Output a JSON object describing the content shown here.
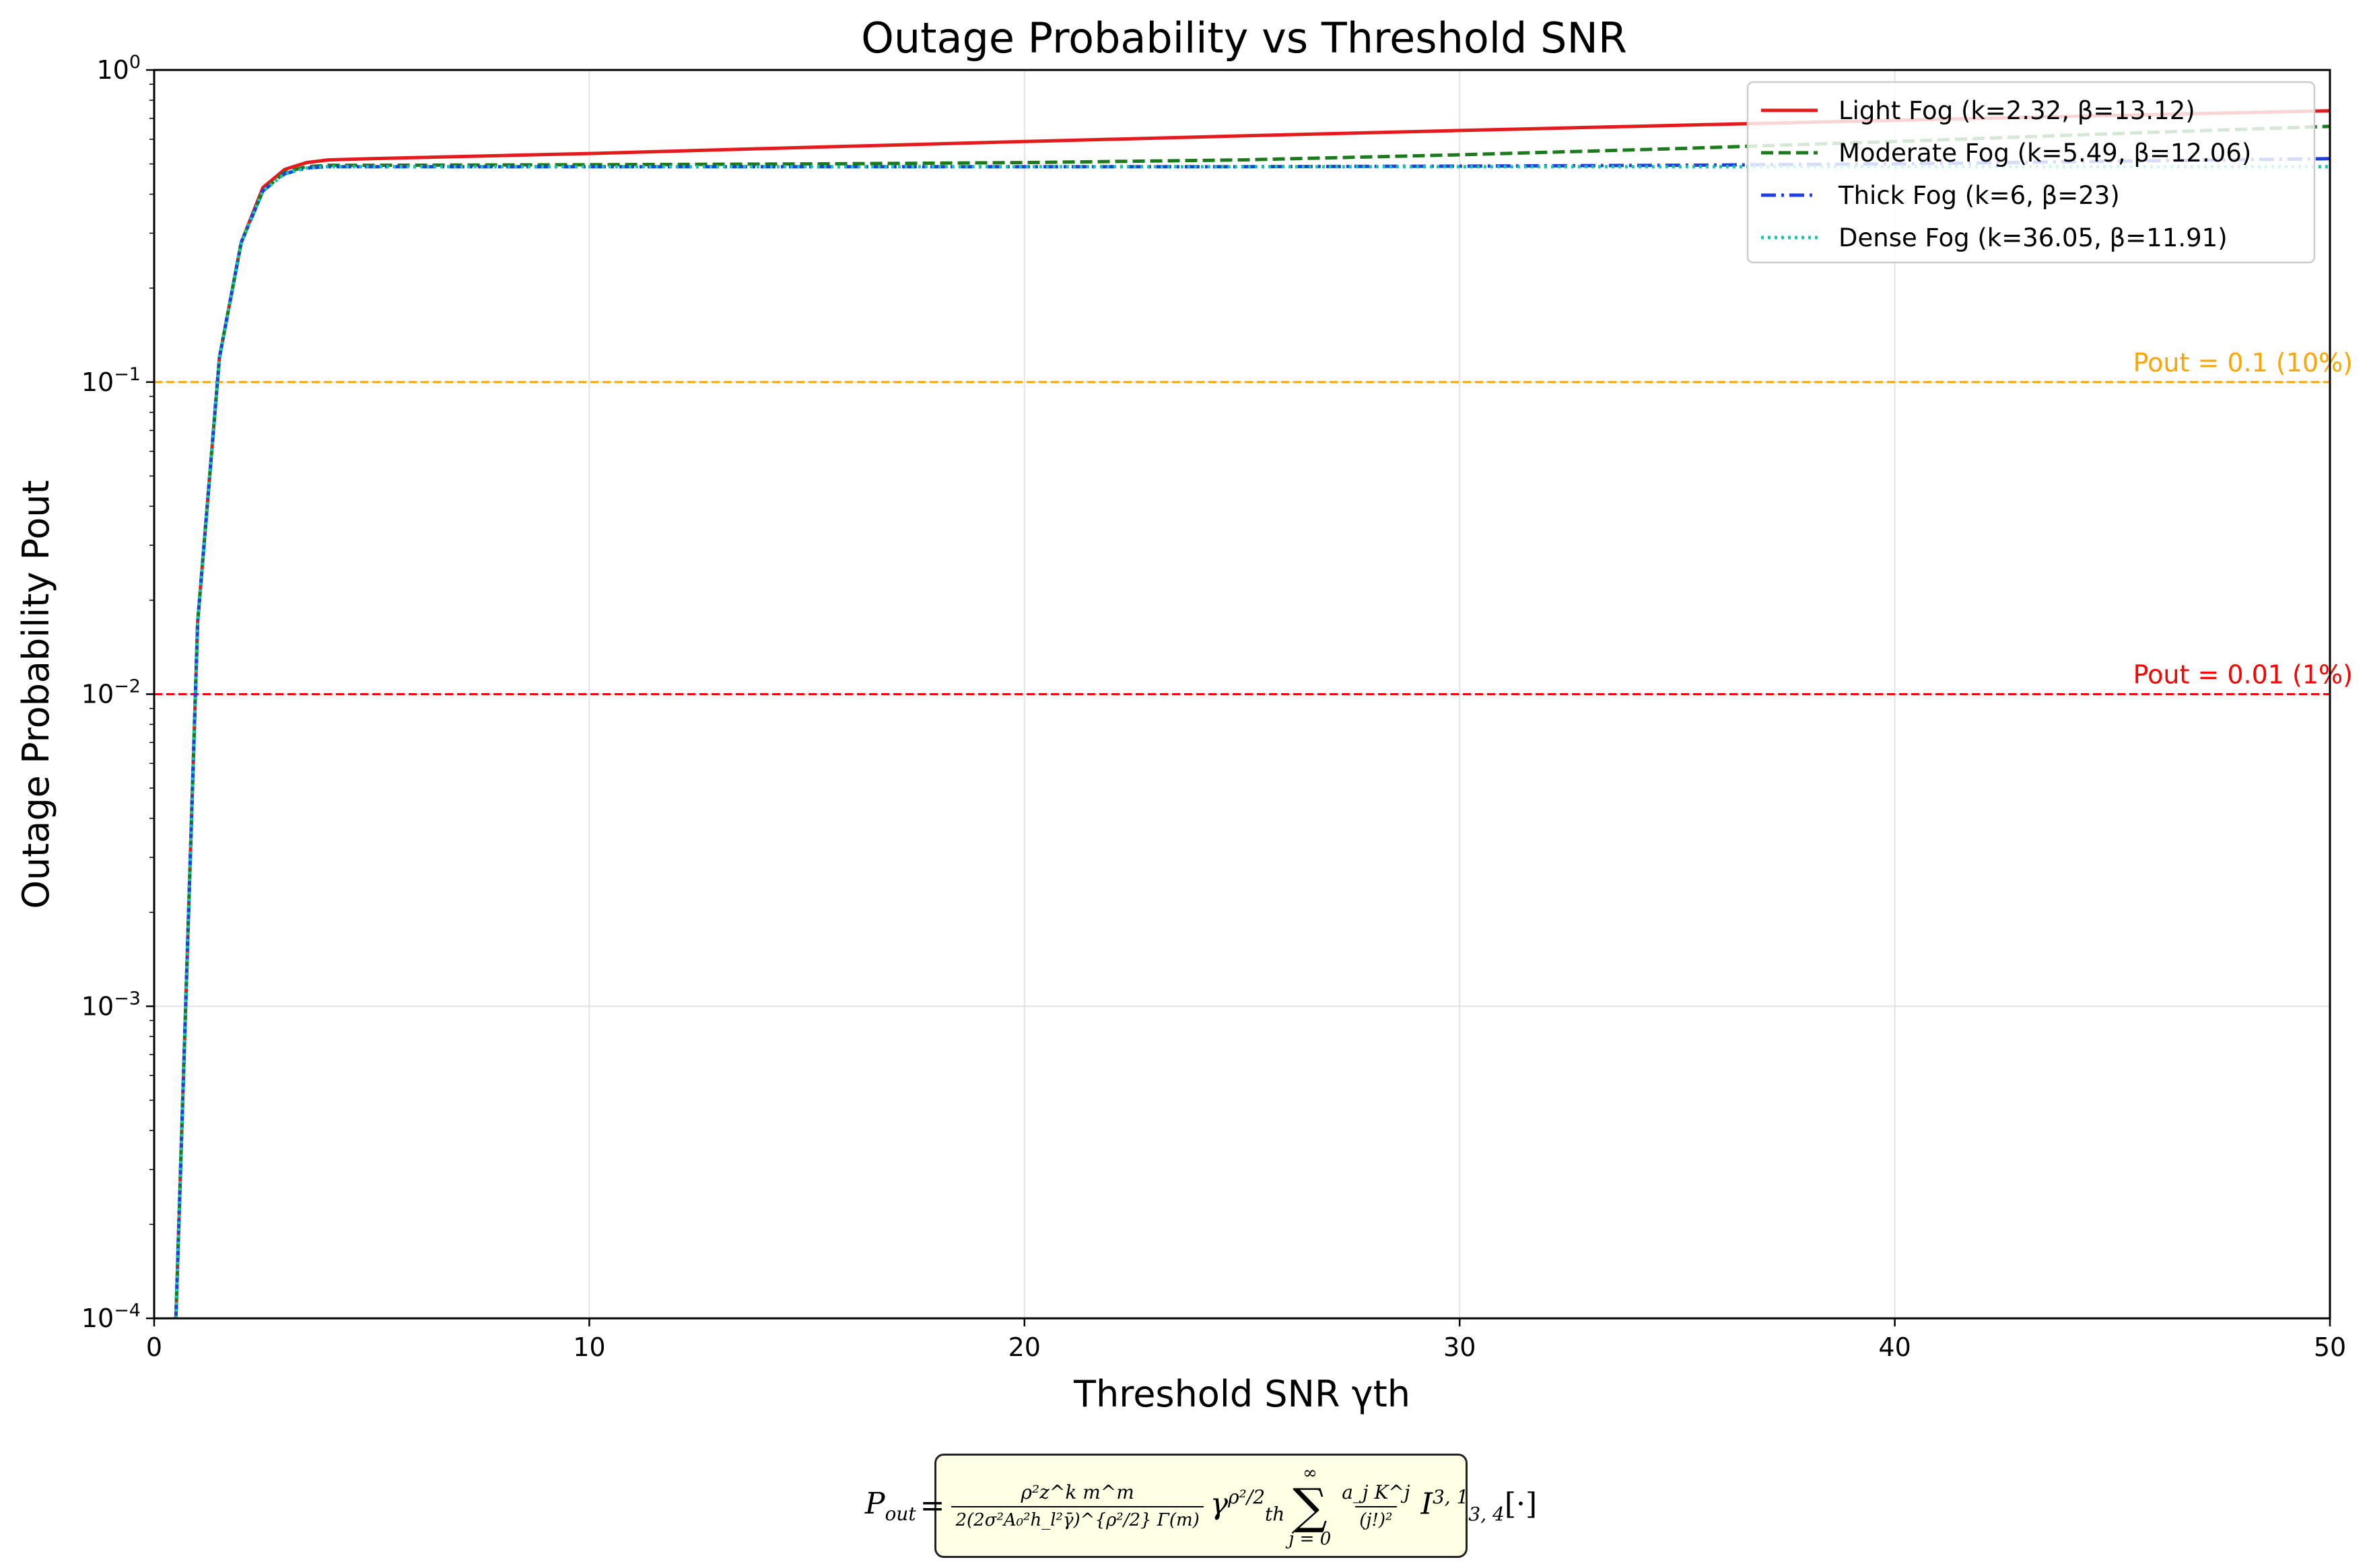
{
  "chart_data": {
    "type": "line",
    "title": "Outage Probability vs Threshold SNR",
    "xlabel": "Threshold SNR γth",
    "ylabel": "Outage Probability Pout",
    "x_scale": "linear",
    "y_scale": "log",
    "xlim": [
      0,
      50
    ],
    "ylim": [
      0.0001,
      1
    ],
    "x_ticks": [
      0,
      10,
      20,
      30,
      40,
      50
    ],
    "x_tick_labels": [
      "0",
      "10",
      "20",
      "30",
      "40",
      "50"
    ],
    "y_ticks": [
      0.0001,
      0.001,
      0.01,
      0.1,
      1
    ],
    "y_tick_labels": [
      {
        "base": "10",
        "exp": "−4"
      },
      {
        "base": "10",
        "exp": "−3"
      },
      {
        "base": "10",
        "exp": "−2"
      },
      {
        "base": "10",
        "exp": "−1"
      },
      {
        "base": "10",
        "exp": "0"
      }
    ],
    "grid": true,
    "legend_position": "top-right",
    "x": [
      0.5,
      1,
      1.5,
      2,
      2.5,
      3,
      3.5,
      4,
      5,
      10,
      15,
      20,
      25,
      30,
      35,
      40,
      45,
      50
    ],
    "series": [
      {
        "name": "Light Fog (k=2.32, β=13.12)",
        "color": "#e41a1c",
        "dash": "solid",
        "values": [
          0.0001,
          0.017,
          0.12,
          0.28,
          0.42,
          0.48,
          0.505,
          0.515,
          0.52,
          0.54,
          0.565,
          0.59,
          0.615,
          0.64,
          0.665,
          0.69,
          0.715,
          0.74
        ]
      },
      {
        "name": "Moderate Fog (k=5.49, β=12.06)",
        "color": "#1b7a1b",
        "dash": "dashed",
        "values": [
          0.0001,
          0.017,
          0.12,
          0.28,
          0.41,
          0.47,
          0.49,
          0.495,
          0.495,
          0.497,
          0.5,
          0.505,
          0.515,
          0.535,
          0.56,
          0.59,
          0.625,
          0.66
        ]
      },
      {
        "name": "Thick Fog (k=6, β=23)",
        "color": "#1f3fe0",
        "dash": "dashdot",
        "values": [
          0.0001,
          0.017,
          0.12,
          0.28,
          0.41,
          0.465,
          0.485,
          0.49,
          0.49,
          0.49,
          0.49,
          0.49,
          0.49,
          0.492,
          0.495,
          0.5,
          0.51,
          0.52
        ]
      },
      {
        "name": "Dense Fog (k=36.05, β=11.91)",
        "color": "#17c7a7",
        "dash": "dotted",
        "values": [
          0.0001,
          0.017,
          0.12,
          0.28,
          0.41,
          0.465,
          0.485,
          0.49,
          0.49,
          0.49,
          0.49,
          0.49,
          0.49,
          0.49,
          0.49,
          0.49,
          0.49,
          0.49
        ]
      }
    ],
    "reference_lines": [
      {
        "y": 0.1,
        "label": "Pout = 0.1 (10%)",
        "color": "#ffa500"
      },
      {
        "y": 0.01,
        "label": "Pout = 0.01 (1%)",
        "color": "#ff0000"
      }
    ],
    "formula": {
      "lhs": "P",
      "lhs_sub": "out",
      "eq": "=",
      "num": "ρ²z^k m^m",
      "den": "2(2σ²A₀²h_l²γ̄)^{ρ²/2} Γ(m)",
      "gamma": "γ",
      "gamma_sup": "ρ²/2",
      "gamma_sub": "th",
      "sum_top": "∞",
      "sum_bottom": "j = 0",
      "term_num": "a_j K^j",
      "term_den": "(j!)²",
      "I": "I",
      "I_sup": "3, 1",
      "I_sub": "3, 4",
      "tail": "[·]"
    }
  }
}
